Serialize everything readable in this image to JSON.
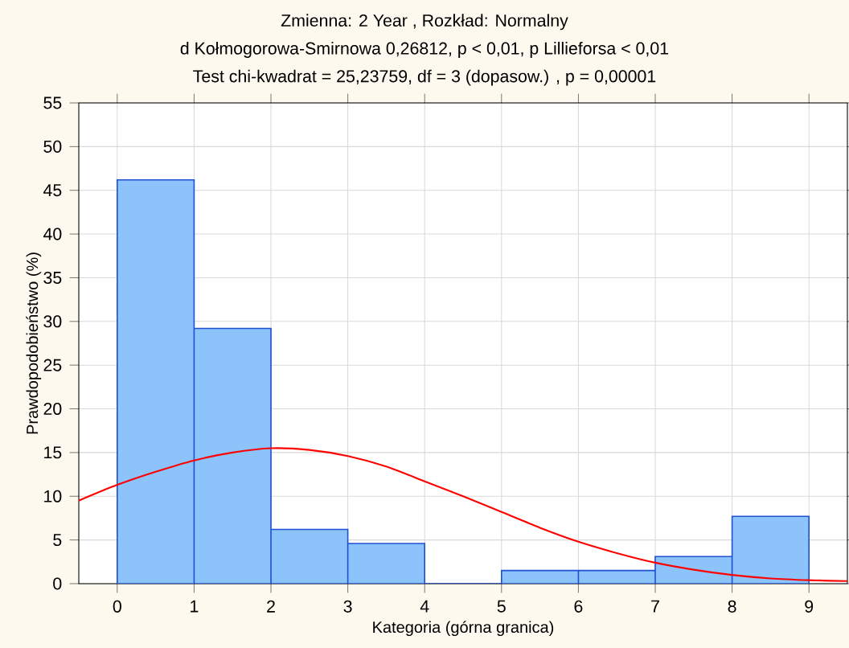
{
  "chart_data": {
    "type": "histogram",
    "title": "Zmienna:  2 Year , Rozkład: Normalny",
    "subtitle": "d Kołmogorowa-Smirnowa 0,26812, p < 0,01, p Lillieforsa < 0,01",
    "annotations": [
      "Test chi-kwadrat = 25,23759, df = 3 (dopasow.) , p = 0,00001"
    ],
    "xlabel": "Kategoria (górna granica)",
    "ylabel": "Prawdopodobieństwo (%)",
    "bins": [
      0,
      1,
      2,
      3,
      4,
      5,
      6,
      7,
      8,
      9
    ],
    "values": [
      46.2,
      29.2,
      6.2,
      4.6,
      0,
      1.5,
      1.5,
      3.1,
      7.7
    ],
    "color": "#8cc3fa",
    "series": [
      {
        "type": "line",
        "color": "#ff0000",
        "marker": "none",
        "x": [
          -0.5,
          0,
          0.5,
          1,
          1.5,
          2,
          2.5,
          3,
          3.5,
          4,
          4.5,
          5,
          5.5,
          6,
          6.5,
          7,
          7.5,
          8,
          8.5,
          9,
          9.5
        ],
        "values": [
          9.5,
          11.3,
          12.8,
          14.1,
          15.0,
          15.5,
          15.3,
          14.6,
          13.4,
          11.7,
          10.0,
          8.2,
          6.4,
          4.8,
          3.5,
          2.4,
          1.6,
          1.0,
          0.6,
          0.4,
          0.3
        ]
      }
    ],
    "xlim": [
      -0.5,
      9.5
    ],
    "ylim": [
      0,
      55
    ],
    "xticks": [
      0,
      1,
      2,
      3,
      4,
      5,
      6,
      7,
      8,
      9
    ],
    "yticks": [
      0,
      5,
      10,
      15,
      20,
      25,
      30,
      35,
      40,
      45,
      50,
      55
    ],
    "grid": true
  }
}
